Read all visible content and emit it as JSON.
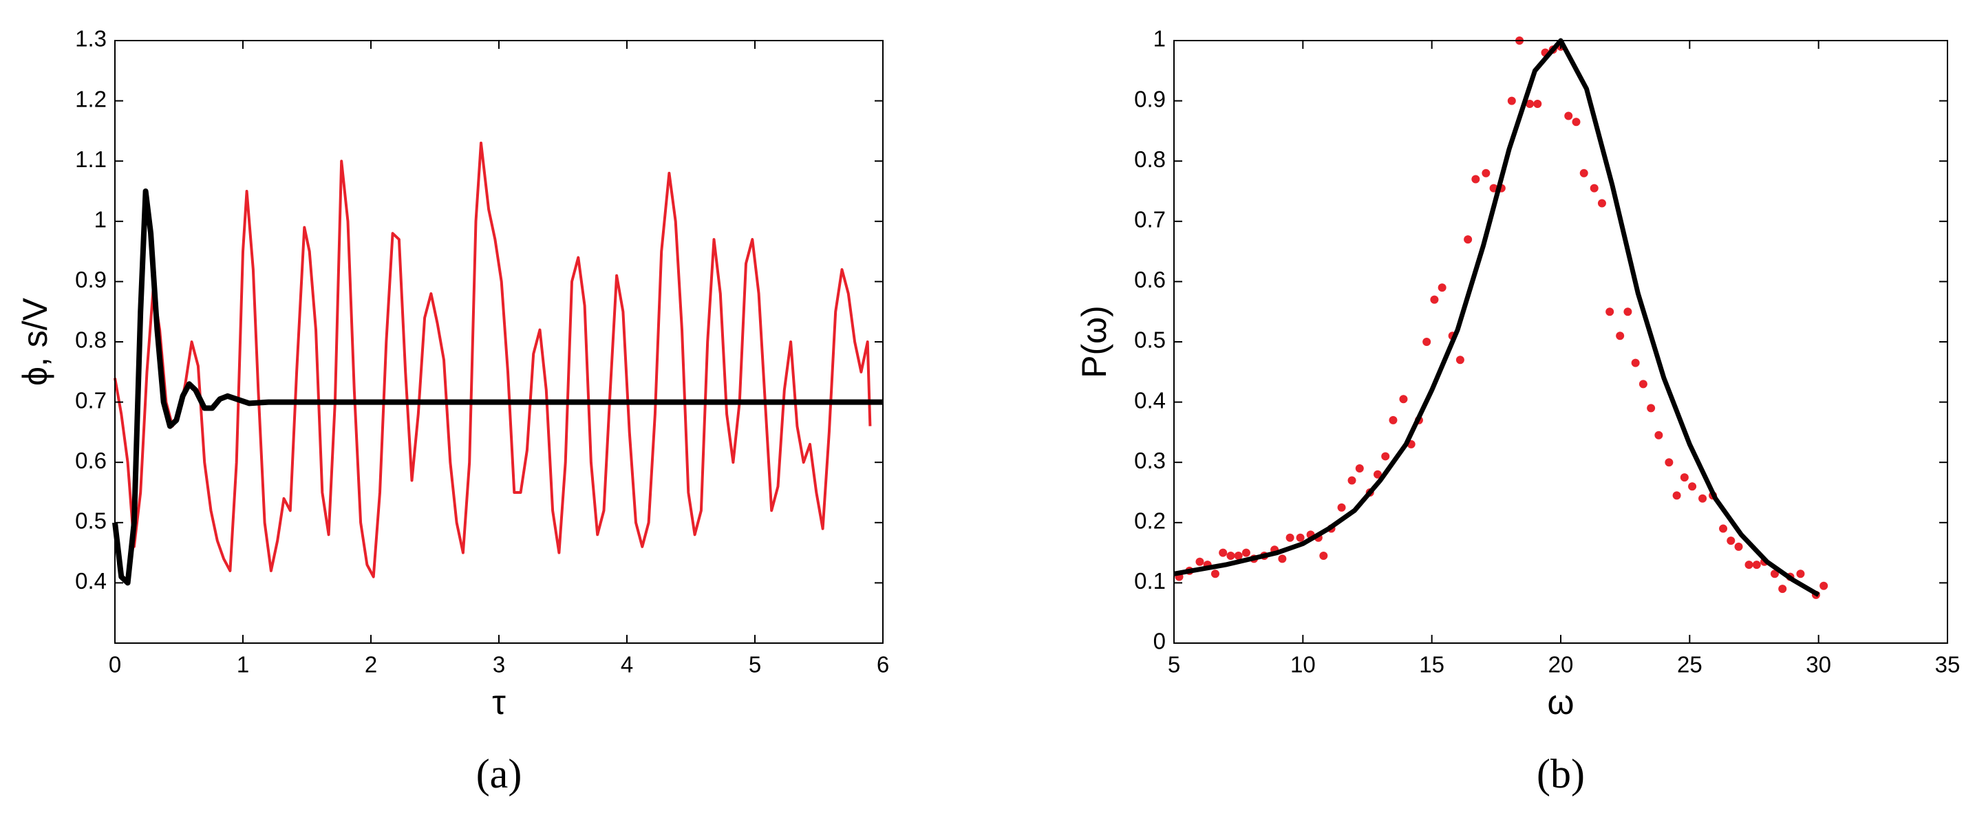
{
  "chart_data": [
    {
      "type": "line",
      "panel_label": "(a)",
      "x_label": "τ",
      "y_label": "ϕ, s/V",
      "xlim": [
        0,
        6
      ],
      "xticks": [
        0,
        1,
        2,
        3,
        4,
        5,
        6
      ],
      "ylim": [
        0.3,
        1.3
      ],
      "yticks": [
        0.4,
        0.5,
        0.6,
        0.7,
        0.8,
        0.9,
        1,
        1.1,
        1.2,
        1.3
      ],
      "series": [
        {
          "color": "#e8222b",
          "width": 4,
          "x": [
            0,
            0.05,
            0.1,
            0.15,
            0.2,
            0.25,
            0.3,
            0.35,
            0.4,
            0.45,
            0.5,
            0.55,
            0.6,
            0.65,
            0.7,
            0.75,
            0.8,
            0.85,
            0.9,
            0.95,
            1.0,
            1.03,
            1.08,
            1.12,
            1.17,
            1.22,
            1.27,
            1.32,
            1.37,
            1.42,
            1.48,
            1.52,
            1.57,
            1.62,
            1.67,
            1.72,
            1.77,
            1.82,
            1.87,
            1.92,
            1.97,
            2.02,
            2.07,
            2.12,
            2.17,
            2.22,
            2.27,
            2.32,
            2.37,
            2.42,
            2.47,
            2.52,
            2.57,
            2.62,
            2.67,
            2.72,
            2.77,
            2.82,
            2.86,
            2.92,
            2.97,
            3.02,
            3.07,
            3.12,
            3.17,
            3.22,
            3.27,
            3.32,
            3.37,
            3.42,
            3.47,
            3.52,
            3.57,
            3.62,
            3.67,
            3.72,
            3.77,
            3.82,
            3.87,
            3.92,
            3.97,
            4.02,
            4.07,
            4.12,
            4.17,
            4.22,
            4.27,
            4.33,
            4.38,
            4.43,
            4.48,
            4.53,
            4.58,
            4.63,
            4.68,
            4.73,
            4.78,
            4.83,
            4.88,
            4.93,
            4.98,
            5.03,
            5.08,
            5.13,
            5.18,
            5.23,
            5.28,
            5.33,
            5.38,
            5.43,
            5.48,
            5.53,
            5.58,
            5.63,
            5.68,
            5.73,
            5.78,
            5.83,
            5.88,
            5.9
          ],
          "values": [
            0.74,
            0.68,
            0.6,
            0.46,
            0.55,
            0.75,
            0.89,
            0.82,
            0.7,
            0.66,
            0.68,
            0.73,
            0.8,
            0.76,
            0.6,
            0.52,
            0.47,
            0.44,
            0.42,
            0.6,
            0.95,
            1.05,
            0.92,
            0.72,
            0.5,
            0.42,
            0.47,
            0.54,
            0.52,
            0.75,
            0.99,
            0.95,
            0.82,
            0.55,
            0.48,
            0.7,
            1.1,
            1.0,
            0.72,
            0.5,
            0.43,
            0.41,
            0.55,
            0.8,
            0.98,
            0.97,
            0.75,
            0.57,
            0.68,
            0.84,
            0.88,
            0.83,
            0.77,
            0.6,
            0.5,
            0.45,
            0.6,
            1.0,
            1.13,
            1.02,
            0.97,
            0.9,
            0.75,
            0.55,
            0.55,
            0.62,
            0.78,
            0.82,
            0.72,
            0.52,
            0.45,
            0.6,
            0.9,
            0.94,
            0.86,
            0.6,
            0.48,
            0.52,
            0.72,
            0.91,
            0.85,
            0.65,
            0.5,
            0.46,
            0.5,
            0.68,
            0.95,
            1.08,
            1.0,
            0.82,
            0.55,
            0.48,
            0.52,
            0.8,
            0.97,
            0.88,
            0.68,
            0.6,
            0.7,
            0.93,
            0.97,
            0.88,
            0.7,
            0.52,
            0.56,
            0.72,
            0.8,
            0.66,
            0.6,
            0.63,
            0.55,
            0.49,
            0.65,
            0.85,
            0.92,
            0.88,
            0.8,
            0.75,
            0.8,
            0.66
          ]
        },
        {
          "color": "#000000",
          "width": 8,
          "x": [
            0,
            0.05,
            0.1,
            0.15,
            0.2,
            0.24,
            0.28,
            0.33,
            0.38,
            0.43,
            0.48,
            0.53,
            0.58,
            0.63,
            0.7,
            0.76,
            0.82,
            0.88,
            0.95,
            1.05,
            1.2,
            2,
            3,
            4,
            5,
            6
          ],
          "values": [
            0.5,
            0.41,
            0.4,
            0.5,
            0.85,
            1.05,
            0.98,
            0.82,
            0.7,
            0.66,
            0.67,
            0.71,
            0.73,
            0.72,
            0.69,
            0.69,
            0.705,
            0.71,
            0.705,
            0.698,
            0.7,
            0.7,
            0.7,
            0.7,
            0.7,
            0.7
          ]
        }
      ]
    },
    {
      "type": "scatter",
      "panel_label": "(b)",
      "x_label": "ω",
      "y_label": "P(ω)",
      "xlim": [
        5,
        35
      ],
      "xticks": [
        5,
        10,
        15,
        20,
        25,
        30,
        35
      ],
      "ylim": [
        0,
        1
      ],
      "yticks": [
        0,
        0.1,
        0.2,
        0.3,
        0.4,
        0.5,
        0.6,
        0.7,
        0.8,
        0.9,
        1
      ],
      "series": [
        {
          "color": "#e8222b",
          "style": "markers",
          "x": [
            5.2,
            5.6,
            6.0,
            6.3,
            6.6,
            6.9,
            7.2,
            7.5,
            7.8,
            8.1,
            8.5,
            8.9,
            9.2,
            9.5,
            9.9,
            10.3,
            10.6,
            10.8,
            11.1,
            11.5,
            11.9,
            12.2,
            12.6,
            12.9,
            13.2,
            13.5,
            13.9,
            14.2,
            14.5,
            14.8,
            15.1,
            15.4,
            15.8,
            16.1,
            16.4,
            16.7,
            17.1,
            17.4,
            17.7,
            18.1,
            18.4,
            18.8,
            19.1,
            19.4,
            19.7,
            20.0,
            20.3,
            20.6,
            20.9,
            21.3,
            21.6,
            21.9,
            22.3,
            22.6,
            22.9,
            23.2,
            23.5,
            23.8,
            24.2,
            24.5,
            24.8,
            25.1,
            25.5,
            25.9,
            26.3,
            26.6,
            26.9,
            27.3,
            27.6,
            27.9,
            28.3,
            28.6,
            28.9,
            29.3,
            29.9,
            30.2
          ],
          "values": [
            0.11,
            0.12,
            0.135,
            0.13,
            0.115,
            0.15,
            0.145,
            0.145,
            0.15,
            0.14,
            0.145,
            0.155,
            0.14,
            0.175,
            0.175,
            0.18,
            0.175,
            0.145,
            0.19,
            0.225,
            0.27,
            0.29,
            0.25,
            0.28,
            0.31,
            0.37,
            0.405,
            0.33,
            0.37,
            0.5,
            0.57,
            0.59,
            0.51,
            0.47,
            0.67,
            0.77,
            0.78,
            0.755,
            0.755,
            0.9,
            1.0,
            0.895,
            0.895,
            0.98,
            0.985,
            0.99,
            0.875,
            0.865,
            0.78,
            0.755,
            0.73,
            0.55,
            0.51,
            0.55,
            0.465,
            0.43,
            0.39,
            0.345,
            0.3,
            0.245,
            0.275,
            0.26,
            0.24,
            0.245,
            0.19,
            0.17,
            0.16,
            0.13,
            0.13,
            0.135,
            0.115,
            0.09,
            0.11,
            0.115,
            0.08,
            0.095
          ]
        },
        {
          "color": "#000000",
          "style": "line",
          "x": [
            5,
            7,
            9,
            10,
            11,
            12,
            13,
            14,
            15,
            16,
            17,
            18,
            19,
            20,
            21,
            22,
            23,
            24,
            25,
            26,
            27,
            28,
            29,
            30
          ],
          "values": [
            0.115,
            0.13,
            0.15,
            0.165,
            0.19,
            0.22,
            0.27,
            0.33,
            0.42,
            0.52,
            0.66,
            0.82,
            0.95,
            1.0,
            0.92,
            0.76,
            0.58,
            0.44,
            0.33,
            0.24,
            0.18,
            0.135,
            0.105,
            0.08
          ]
        }
      ]
    }
  ]
}
